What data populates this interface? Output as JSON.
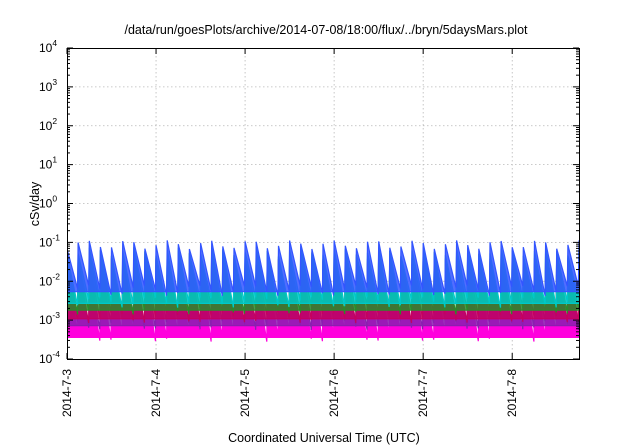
{
  "chart_data": {
    "type": "area",
    "title": "/data/run/goesPlots/archive/2014-07-08/18:00/flux/../bryn/5daysMars.plot",
    "xlabel": "Coordinated Universal Time (UTC)",
    "ylabel": "cSv/day",
    "yscale": "log",
    "ylim": [
      0.0001,
      10000
    ],
    "y_ticks": [
      {
        "base": "10",
        "exp": "-4",
        "value": 0.0001
      },
      {
        "base": "10",
        "exp": "-3",
        "value": 0.001
      },
      {
        "base": "10",
        "exp": "-2",
        "value": 0.01
      },
      {
        "base": "10",
        "exp": "-1",
        "value": 0.1
      },
      {
        "base": "10",
        "exp": "0",
        "value": 1
      },
      {
        "base": "10",
        "exp": "1",
        "value": 10
      },
      {
        "base": "10",
        "exp": "2",
        "value": 100
      },
      {
        "base": "10",
        "exp": "3",
        "value": 1000
      },
      {
        "base": "10",
        "exp": "4",
        "value": 10000
      }
    ],
    "xlim": [
      "2014-07-03T00:00",
      "2014-07-08T18:00"
    ],
    "x_ticks": [
      "2014-7-3",
      "2014-7-4",
      "2014-7-5",
      "2014-7-6",
      "2014-7-7",
      "2014-7-8"
    ],
    "x_tick_dates": [
      "2014-07-03T00:00",
      "2014-07-04T00:00",
      "2014-07-05T00:00",
      "2014-07-06T00:00",
      "2014-07-07T00:00",
      "2014-07-08T00:00"
    ],
    "grid": true,
    "sawtooth_period_hours": 3,
    "series": [
      {
        "color": "#ff00dd",
        "min": 0.0004,
        "max": 0.02
      },
      {
        "color": "#8a1fb0",
        "min": 0.0008,
        "max": 0.03
      },
      {
        "color": "#c40060",
        "min": 0.0012,
        "max": 0.035
      },
      {
        "color": "#2a8a2a",
        "min": 0.002,
        "max": 0.05
      },
      {
        "color": "#00c8c8",
        "min": 0.003,
        "max": 0.06
      },
      {
        "color": "#3355ff",
        "min": 0.006,
        "max": 0.09
      }
    ]
  }
}
